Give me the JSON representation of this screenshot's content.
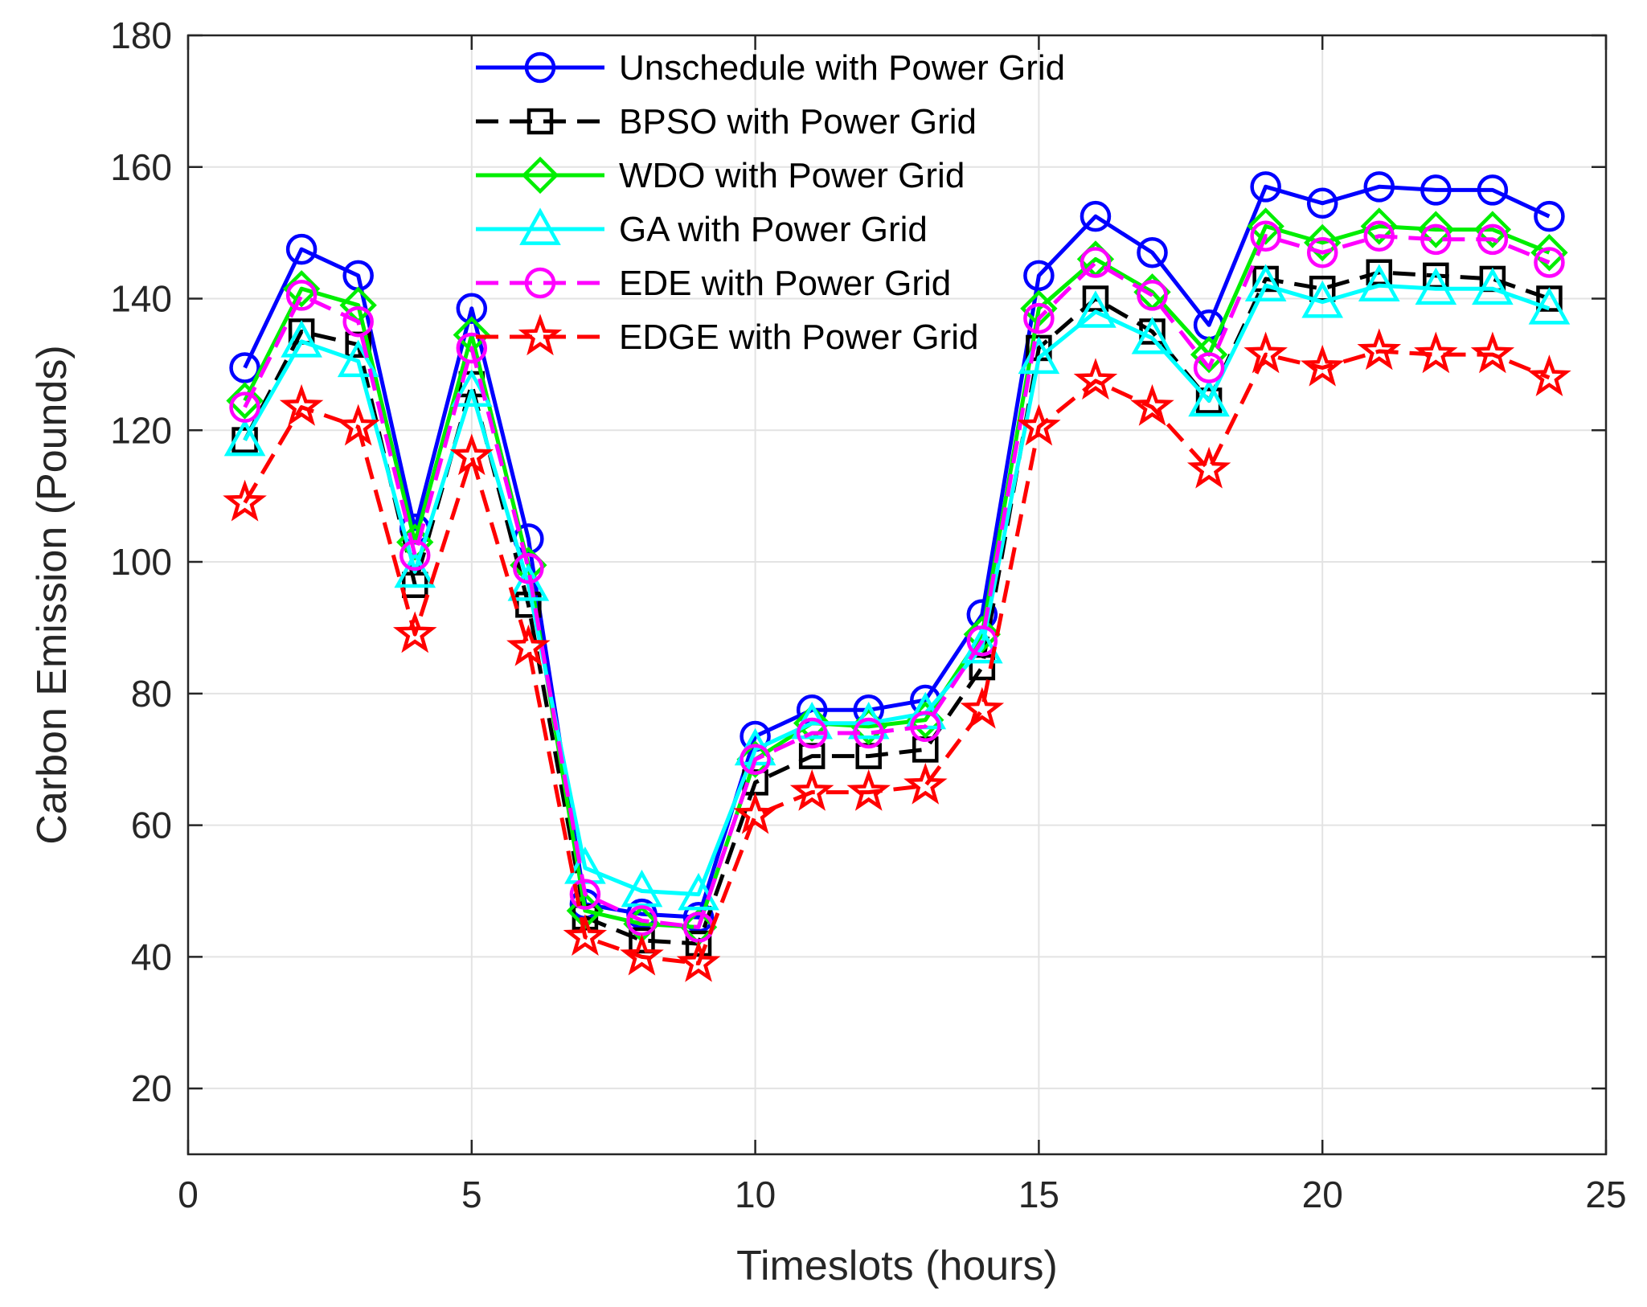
{
  "chart_data": {
    "type": "line",
    "title": "",
    "xlabel": "Timeslots (hours)",
    "ylabel": "Carbon Emission (Pounds)",
    "xlim": [
      0,
      25
    ],
    "ylim": [
      10,
      180
    ],
    "xticks": [
      0,
      5,
      10,
      15,
      20,
      25
    ],
    "yticks": [
      20,
      40,
      60,
      80,
      100,
      120,
      140,
      160,
      180
    ],
    "grid": true,
    "legend_position": "top-center",
    "x": [
      1,
      2,
      3,
      4,
      5,
      6,
      7,
      8,
      9,
      10,
      11,
      12,
      13,
      14,
      15,
      16,
      17,
      18,
      19,
      20,
      21,
      22,
      23,
      24
    ],
    "series": [
      {
        "name": "Unschedule with Power Grid",
        "color": "#0000ff",
        "marker": "circle",
        "line_style": "solid",
        "values": [
          129.5,
          147.5,
          143.5,
          105,
          138.5,
          103.5,
          48,
          46.5,
          46,
          73.5,
          77.5,
          77.5,
          79,
          92,
          143.5,
          152.5,
          147,
          136,
          157,
          154.5,
          157,
          156.5,
          156.5,
          152.5
        ]
      },
      {
        "name": "BPSO with Power Grid",
        "color": "#000000",
        "marker": "square",
        "line_style": "dashed",
        "values": [
          118.5,
          135,
          133,
          96.5,
          127,
          93.5,
          46,
          42.5,
          42,
          66.5,
          70.5,
          70.5,
          71.5,
          84,
          132.5,
          140,
          135,
          124.5,
          143,
          141.5,
          144,
          143.5,
          143,
          140
        ]
      },
      {
        "name": "WDO with Power Grid",
        "color": "#00ee00",
        "marker": "diamond",
        "line_style": "solid",
        "values": [
          124.5,
          141.5,
          139,
          103,
          134.5,
          99.5,
          47,
          45,
          44.5,
          70,
          75.5,
          75,
          76,
          89,
          138.5,
          146,
          141,
          131.5,
          151,
          148.5,
          151,
          150.5,
          150.5,
          147
        ]
      },
      {
        "name": "GA with Power Grid",
        "color": "#00ffff",
        "marker": "triangle",
        "line_style": "solid",
        "values": [
          118.5,
          133.5,
          130.5,
          98.5,
          126,
          96.5,
          53.5,
          50,
          49.5,
          71.5,
          75.5,
          75.5,
          77,
          87,
          131,
          138,
          134,
          124.5,
          142,
          139.5,
          142,
          141.5,
          141.5,
          138.5
        ]
      },
      {
        "name": "EDE with Power Grid",
        "color": "#ff00ff",
        "marker": "circle",
        "line_style": "dashed",
        "values": [
          123.5,
          140.5,
          136.5,
          101,
          132.5,
          99,
          49.5,
          45.5,
          44.5,
          70,
          74,
          74,
          75,
          88,
          137,
          145.5,
          140.5,
          129.5,
          149.5,
          147,
          149.5,
          149,
          149,
          145.5
        ]
      },
      {
        "name": "EDGE with Power Grid",
        "color": "#ff0000",
        "marker": "star",
        "line_style": "dashed",
        "values": [
          109,
          123.5,
          120.5,
          89,
          116,
          87,
          43,
          40,
          39,
          61.5,
          65,
          65,
          66,
          77.5,
          120.5,
          127.5,
          123.5,
          114,
          131.5,
          129.5,
          132,
          131.5,
          131.5,
          128
        ]
      }
    ]
  }
}
